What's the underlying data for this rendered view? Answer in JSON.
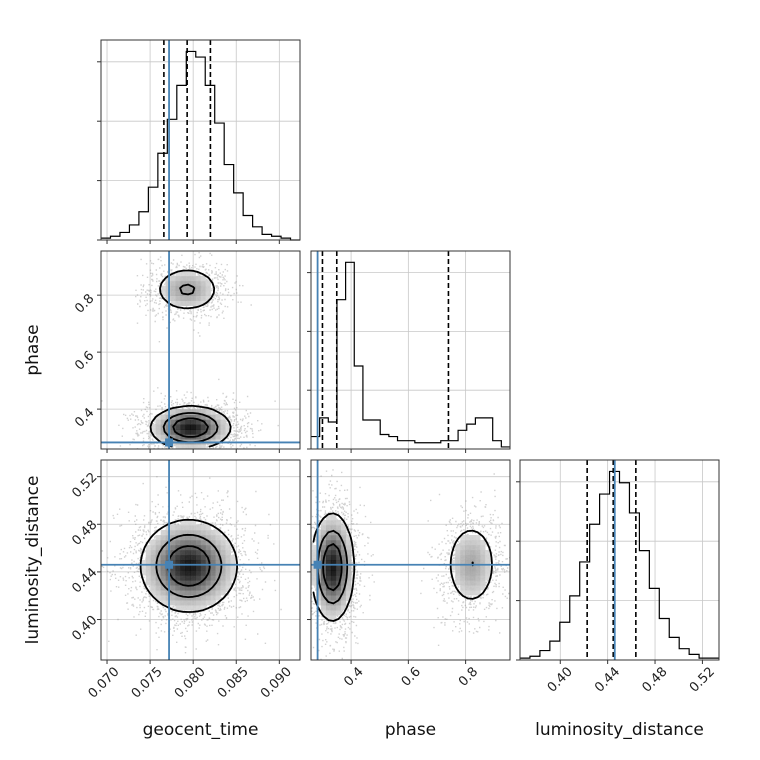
{
  "chart_data": {
    "type": "corner",
    "parameters": [
      {
        "key": "geocent_time",
        "label": "geocent_time",
        "range": [
          0.0693,
          0.0924
        ],
        "ticks": [
          "0.070",
          "0.075",
          "0.080",
          "0.085",
          "0.090"
        ],
        "tick_values": [
          0.07,
          0.075,
          0.08,
          0.085,
          0.09
        ],
        "truth": 0.0772,
        "quantiles": [
          0.0766,
          0.0793,
          0.082
        ],
        "hist": [
          1,
          2,
          4,
          8,
          15,
          28,
          46,
          64,
          82,
          100,
          97,
          82,
          62,
          40,
          25,
          13,
          7,
          3,
          2,
          1,
          0
        ]
      },
      {
        "key": "phase",
        "label": "phase",
        "range": [
          0.26,
          0.955
        ],
        "ticks": [
          "0.4",
          "0.6",
          "0.8"
        ],
        "tick_values": [
          0.4,
          0.6,
          0.8
        ],
        "truth": 0.283,
        "quantiles": [
          0.3,
          0.35,
          0.74
        ],
        "hist": [
          6,
          15,
          13,
          72,
          90,
          40,
          14,
          14,
          7,
          6,
          4,
          4,
          3,
          3,
          3,
          4,
          4,
          9,
          12,
          15,
          15,
          4,
          1
        ]
      },
      {
        "key": "luminosity_distance",
        "label": "luminosity_distance",
        "range": [
          0.366,
          0.534
        ],
        "ticks": [
          "0.40",
          "0.44",
          "0.48",
          "0.52"
        ],
        "tick_values": [
          0.4,
          0.44,
          0.48,
          0.52
        ],
        "truth": 0.446,
        "quantiles": [
          0.4227,
          0.4447,
          0.4638
        ],
        "hist": [
          1,
          2,
          5,
          10,
          20,
          34,
          52,
          72,
          88,
          100,
          94,
          78,
          58,
          38,
          22,
          12,
          6,
          3,
          1,
          1
        ]
      }
    ],
    "pairs": [
      {
        "x": "geocent_time",
        "y": "phase",
        "modes": [
          {
            "mx": 0.0797,
            "my": 0.335,
            "sx": 0.00215,
            "sy": 0.035,
            "w": 0.72
          },
          {
            "mx": 0.0793,
            "my": 0.82,
            "sx": 0.0019,
            "sy": 0.04,
            "w": 0.28
          }
        ]
      },
      {
        "x": "geocent_time",
        "y": "luminosity_distance",
        "modes": [
          {
            "mx": 0.0795,
            "my": 0.445,
            "sx": 0.0026,
            "sy": 0.018,
            "w": 1.0
          }
        ]
      },
      {
        "x": "phase",
        "y": "luminosity_distance",
        "modes": [
          {
            "mx": 0.335,
            "my": 0.444,
            "sx": 0.035,
            "sy": 0.021,
            "w": 0.72
          },
          {
            "mx": 0.82,
            "my": 0.446,
            "sx": 0.045,
            "sy": 0.018,
            "w": 0.28
          }
        ]
      }
    ],
    "colors": {
      "truth": "#4682b4",
      "contour": "#000000",
      "grid": "#c8c8c8"
    },
    "grid": true
  }
}
